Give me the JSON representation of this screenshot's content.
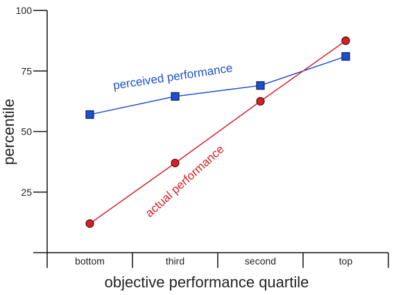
{
  "chart_data": {
    "type": "line",
    "title": "",
    "xlabel": "objective performance quartile",
    "ylabel": "percentile",
    "categories": [
      "bottom",
      "third",
      "second",
      "top"
    ],
    "ylim": [
      0,
      100
    ],
    "yticks": [
      25,
      50,
      75,
      100
    ],
    "grid": false,
    "legend": "none (series labeled inline on the chart)",
    "series": [
      {
        "name": "perceived performance",
        "values": [
          57,
          64.5,
          69,
          81
        ],
        "color": "#1e4fd0",
        "marker": "square"
      },
      {
        "name": "actual performance",
        "values": [
          12,
          37,
          62.5,
          87.5
        ],
        "color": "#d42027",
        "marker": "circle"
      }
    ]
  }
}
